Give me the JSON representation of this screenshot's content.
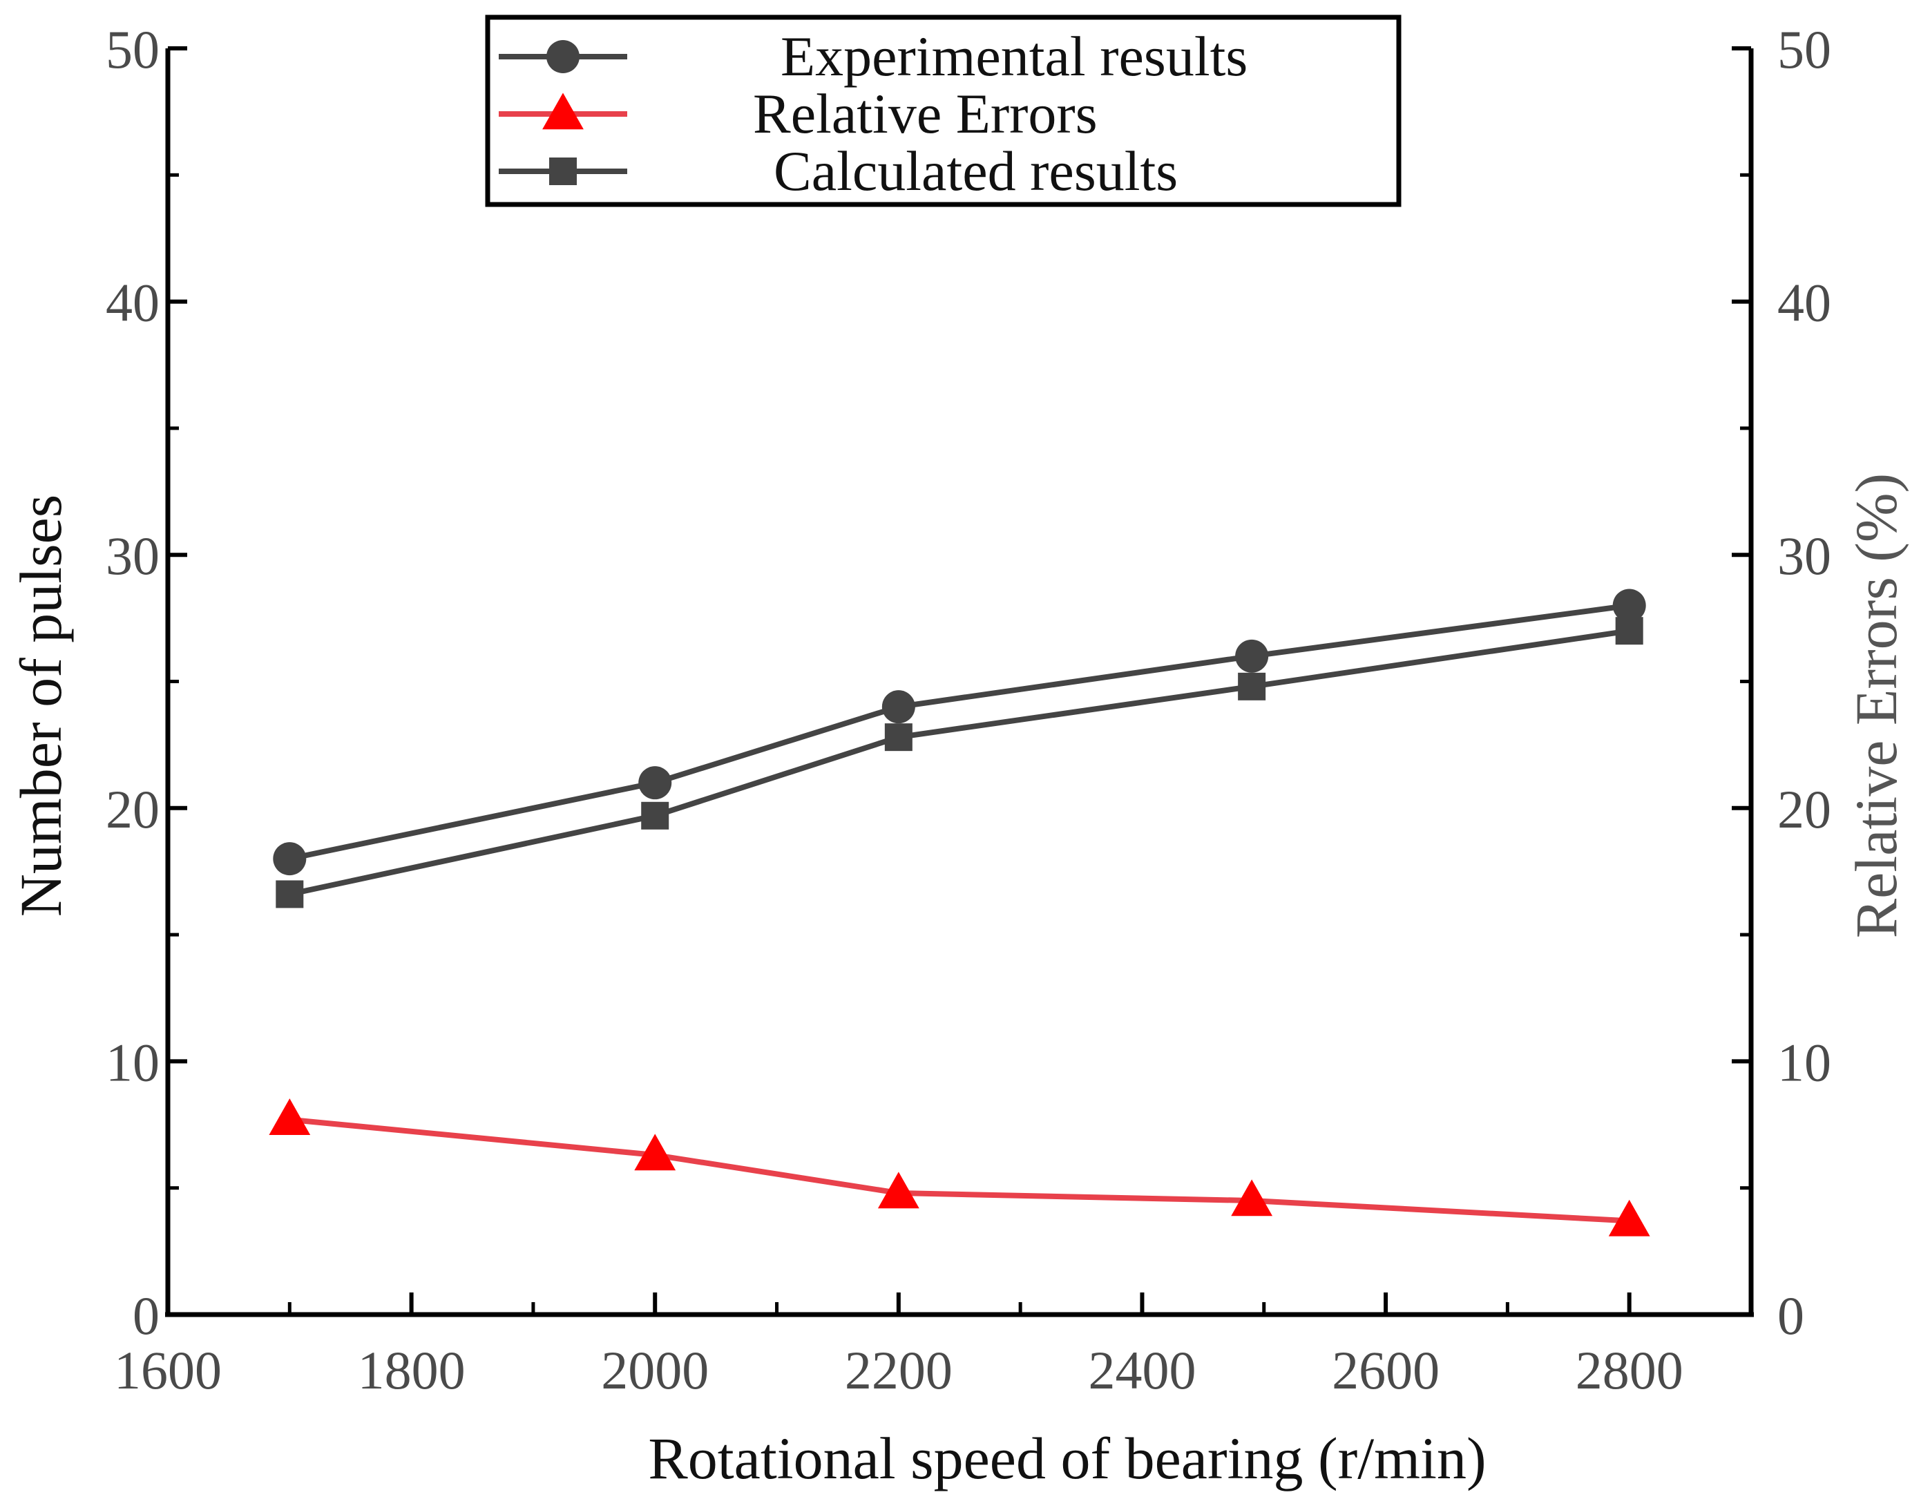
{
  "chart_data": {
    "type": "line",
    "title": "",
    "xlabel": "Rotational speed of bearing (r/min)",
    "ylabel": "Number of pulses",
    "y2label": "Relative Errors (%)",
    "xlim": [
      1600,
      2900
    ],
    "ylim": [
      0,
      50
    ],
    "y2lim": [
      0,
      50
    ],
    "x_ticks": [
      1600,
      1800,
      2000,
      2200,
      2400,
      2600,
      2800
    ],
    "y_ticks": [
      0,
      10,
      20,
      30,
      40,
      50
    ],
    "y2_ticks": [
      0,
      10,
      20,
      30,
      40,
      50
    ],
    "legend_position": "top-center",
    "grid": false,
    "series": [
      {
        "name": "Experimental results",
        "axis": "left",
        "marker": "circle",
        "color": "#444444",
        "x": [
          1700,
          2000,
          2200,
          2490,
          2800
        ],
        "values": [
          18,
          21,
          24,
          26,
          28
        ]
      },
      {
        "name": "Relative Errors",
        "axis": "right",
        "marker": "triangle",
        "color": "#ff0000",
        "line_color": "#e8414b",
        "x": [
          1700,
          2000,
          2200,
          2490,
          2800
        ],
        "values": [
          7.7,
          6.3,
          4.8,
          4.5,
          3.7
        ]
      },
      {
        "name": "Calculated results",
        "axis": "left",
        "marker": "square",
        "color": "#444444",
        "x": [
          1700,
          2000,
          2200,
          2490,
          2800
        ],
        "values": [
          16.6,
          19.7,
          22.8,
          24.8,
          27
        ]
      }
    ]
  }
}
